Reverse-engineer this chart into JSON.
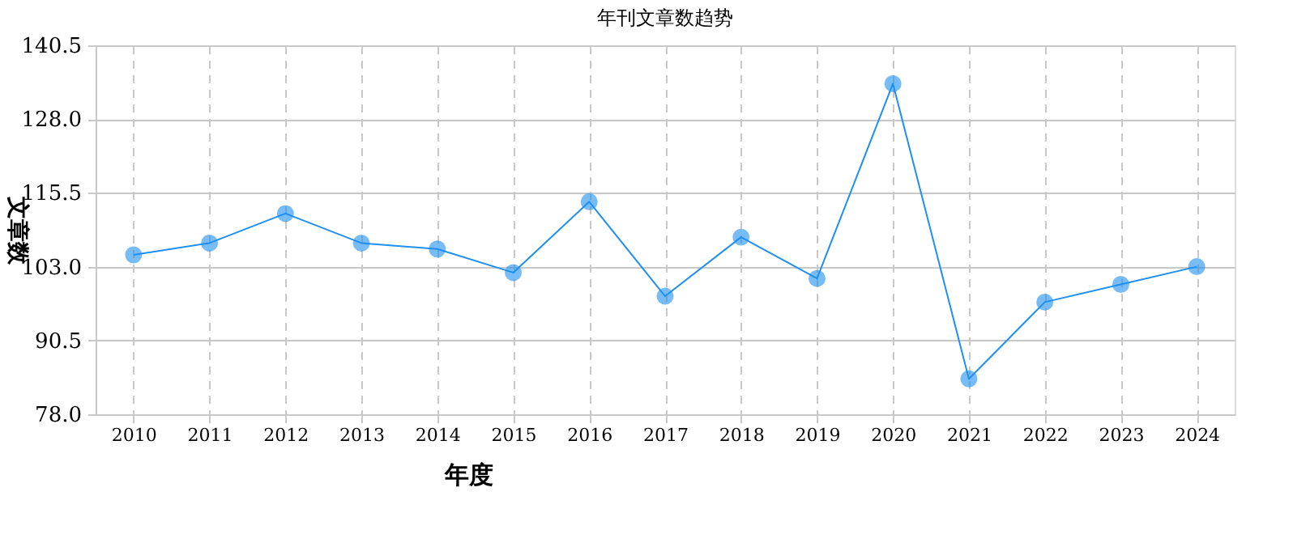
{
  "chart_data": {
    "type": "line",
    "title": "年刊文章数趋势",
    "xlabel": "年度",
    "ylabel": "文章数",
    "categories": [
      "2010",
      "2011",
      "2012",
      "2013",
      "2014",
      "2015",
      "2016",
      "2017",
      "2018",
      "2019",
      "2020",
      "2021",
      "2022",
      "2023",
      "2024"
    ],
    "series": [
      {
        "color": "#1e90f0",
        "values": [
          105,
          107,
          112,
          107,
          106,
          102,
          114,
          98,
          108,
          101,
          134,
          84,
          97,
          100,
          103
        ]
      }
    ],
    "ylim": [
      78.0,
      140.5
    ],
    "yticks": [
      {
        "value": 78,
        "label": "78.0"
      },
      {
        "value": 90.5,
        "label": "90.5"
      },
      {
        "value": 103,
        "label": "103.0"
      },
      {
        "value": 115.5,
        "label": "115.5"
      },
      {
        "value": 128,
        "label": "128.0"
      },
      {
        "value": 140.5,
        "label": "140.5"
      }
    ],
    "grid": true,
    "marker": "circle",
    "line_style": "solid"
  }
}
